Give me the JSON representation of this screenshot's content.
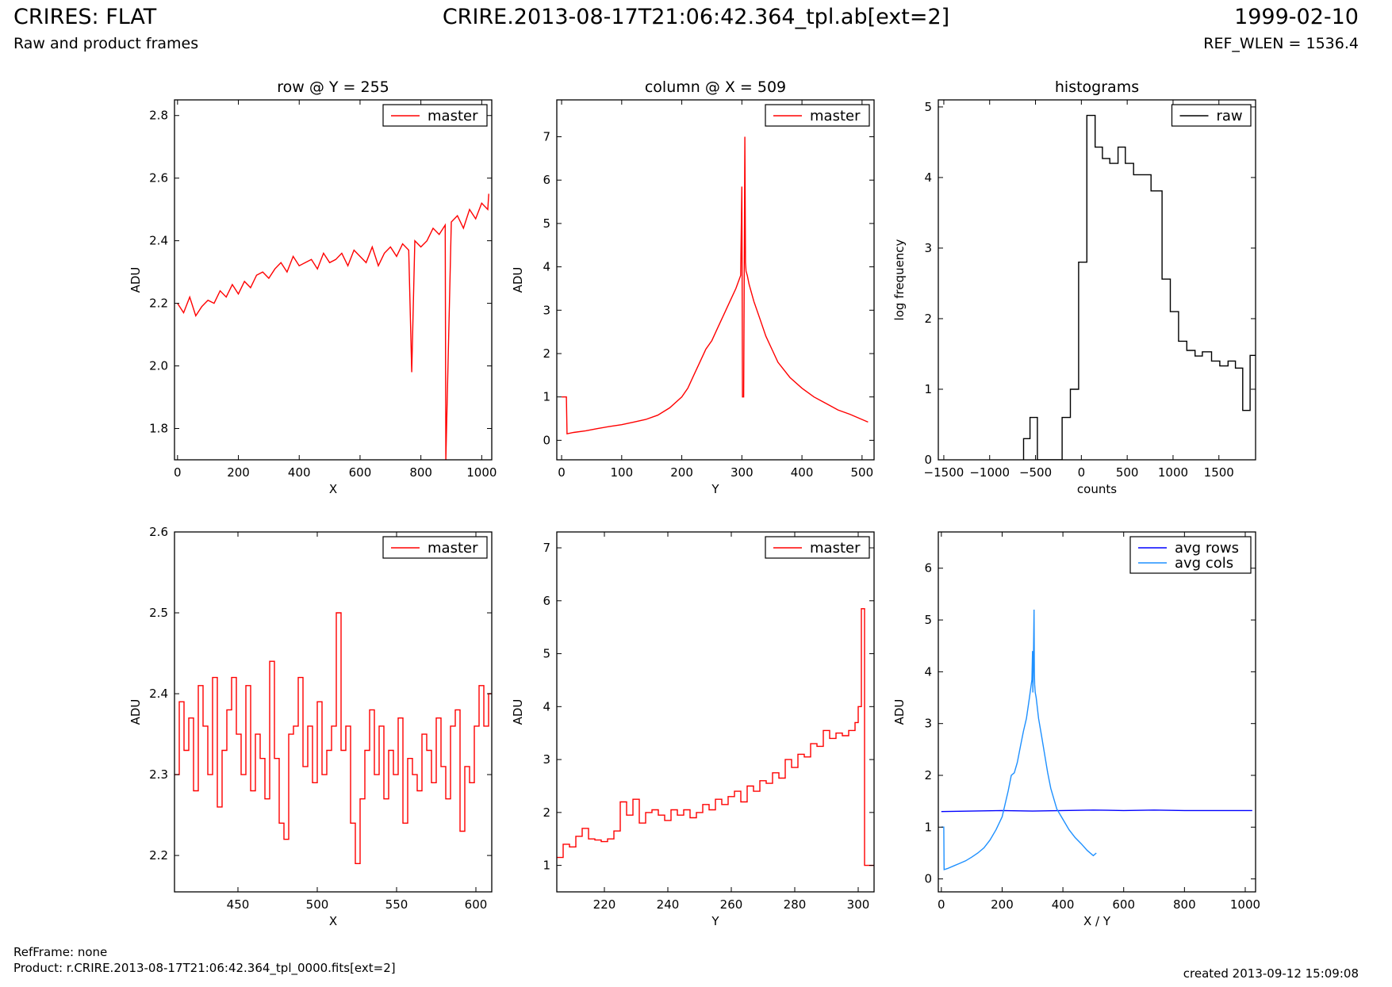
{
  "header": {
    "title": "CRIRES: FLAT",
    "subtitle": "Raw and product frames",
    "center": "CRIRE.2013-08-17T21:06:42.364_tpl.ab[ext=2]",
    "date": "1999-02-10",
    "ref_wlen": "REF_WLEN = 1536.4"
  },
  "footer": {
    "ref_frame": "RefFrame: none",
    "product": "Product: r.CRIRE.2013-08-17T21:06:42.364_tpl_0000.fits[ext=2]",
    "created": "created 2013-09-12 15:09:08"
  },
  "colors": {
    "master": "#ff0000",
    "raw": "#000000",
    "avg_rows": "#0000ff",
    "avg_cols": "#1e90ff"
  },
  "chart_data": [
    {
      "type": "line",
      "title": "row @ Y = 255",
      "xlabel": "X",
      "ylabel": "ADU",
      "xlim": [
        -10,
        1033
      ],
      "ylim": [
        1.7,
        2.85
      ],
      "xticks": [
        0,
        200,
        400,
        600,
        800,
        1000
      ],
      "yticks": [
        1.8,
        2.0,
        2.2,
        2.4,
        2.6,
        2.8
      ],
      "legend": "top-right",
      "series": [
        {
          "name": "master",
          "color": "#ff0000",
          "x": [
            0,
            20,
            40,
            60,
            80,
            100,
            120,
            140,
            160,
            180,
            200,
            220,
            240,
            260,
            280,
            300,
            320,
            340,
            360,
            380,
            400,
            420,
            440,
            460,
            480,
            500,
            520,
            540,
            560,
            580,
            600,
            620,
            640,
            660,
            680,
            700,
            720,
            740,
            760,
            770,
            780,
            800,
            820,
            840,
            860,
            880,
            882,
            900,
            920,
            940,
            960,
            980,
            1000,
            1020,
            1023
          ],
          "y": [
            2.2,
            2.17,
            2.22,
            2.16,
            2.19,
            2.21,
            2.2,
            2.24,
            2.22,
            2.26,
            2.23,
            2.27,
            2.25,
            2.29,
            2.3,
            2.28,
            2.31,
            2.33,
            2.3,
            2.35,
            2.32,
            2.33,
            2.34,
            2.31,
            2.36,
            2.33,
            2.34,
            2.36,
            2.32,
            2.37,
            2.35,
            2.33,
            2.38,
            2.32,
            2.36,
            2.38,
            2.35,
            2.39,
            2.37,
            1.98,
            2.4,
            2.38,
            2.4,
            2.44,
            2.42,
            2.45,
            1.7,
            2.46,
            2.48,
            2.44,
            2.5,
            2.47,
            2.52,
            2.5,
            2.55
          ]
        }
      ]
    },
    {
      "type": "line",
      "title": "column @ X = 509",
      "xlabel": "Y",
      "ylabel": "ADU",
      "xlim": [
        -8,
        520
      ],
      "ylim": [
        -0.45,
        7.85
      ],
      "xticks": [
        0,
        100,
        200,
        300,
        400,
        500
      ],
      "yticks": [
        0,
        1,
        2,
        3,
        4,
        5,
        6,
        7
      ],
      "legend": "top-right",
      "series": [
        {
          "name": "master",
          "color": "#ff0000",
          "x": [
            0,
            8,
            9,
            20,
            40,
            60,
            80,
            100,
            120,
            140,
            160,
            180,
            200,
            210,
            220,
            230,
            240,
            250,
            260,
            270,
            280,
            290,
            298,
            300,
            301,
            303,
            305,
            306,
            307,
            309,
            312,
            320,
            330,
            340,
            350,
            360,
            380,
            400,
            420,
            440,
            460,
            480,
            500,
            510
          ],
          "y": [
            1.0,
            1.0,
            0.15,
            0.18,
            0.22,
            0.27,
            0.32,
            0.36,
            0.42,
            0.48,
            0.58,
            0.75,
            1.0,
            1.2,
            1.5,
            1.8,
            2.1,
            2.3,
            2.6,
            2.9,
            3.2,
            3.5,
            3.8,
            5.85,
            1.0,
            1.0,
            7.0,
            4.1,
            3.9,
            3.8,
            3.6,
            3.2,
            2.8,
            2.4,
            2.1,
            1.8,
            1.45,
            1.2,
            1.0,
            0.85,
            0.7,
            0.6,
            0.48,
            0.42
          ]
        }
      ]
    },
    {
      "type": "line",
      "title": "histograms",
      "xlabel": "counts",
      "ylabel": "log frequency",
      "xlim": [
        -1560,
        1900
      ],
      "ylim": [
        0,
        5.1
      ],
      "xticks": [
        -1500,
        -1000,
        -500,
        0,
        500,
        1000,
        1500
      ],
      "yticks": [
        0,
        1,
        2,
        3,
        4,
        5
      ],
      "legend": "top-right",
      "series": [
        {
          "name": "raw",
          "color": "#000000",
          "step": true,
          "x": [
            -630,
            -630,
            -560,
            -480,
            -480,
            -300,
            -210,
            -120,
            -30,
            60,
            150,
            230,
            310,
            400,
            480,
            570,
            680,
            760,
            880,
            970,
            1060,
            1150,
            1240,
            1320,
            1420,
            1510,
            1600,
            1680,
            1760,
            1840,
            1900
          ],
          "y": [
            0,
            0.3,
            0.6,
            0,
            0,
            0,
            0.6,
            1.0,
            2.8,
            4.88,
            4.43,
            4.27,
            4.2,
            4.43,
            4.2,
            4.04,
            4.04,
            3.81,
            2.56,
            2.1,
            1.68,
            1.55,
            1.47,
            1.53,
            1.4,
            1.33,
            1.4,
            1.3,
            0.7,
            1.48,
            1.48
          ]
        }
      ]
    },
    {
      "type": "line",
      "title": "",
      "xlabel": "X",
      "ylabel": "ADU",
      "xlim": [
        410,
        610
      ],
      "ylim": [
        2.155,
        2.6
      ],
      "xticks": [
        450,
        500,
        550,
        600
      ],
      "yticks": [
        2.2,
        2.3,
        2.4,
        2.5,
        2.6
      ],
      "legend": "top-right",
      "series": [
        {
          "name": "master",
          "color": "#ff0000",
          "step": true,
          "x": [
            410,
            413,
            416,
            419,
            422,
            425,
            428,
            431,
            434,
            437,
            440,
            443,
            446,
            449,
            452,
            455,
            458,
            461,
            464,
            467,
            470,
            473,
            476,
            479,
            482,
            485,
            488,
            491,
            494,
            497,
            500,
            503,
            506,
            509,
            512,
            515,
            518,
            521,
            524,
            527,
            530,
            533,
            536,
            539,
            542,
            545,
            548,
            551,
            554,
            557,
            560,
            563,
            566,
            569,
            572,
            575,
            578,
            581,
            584,
            587,
            590,
            593,
            596,
            599,
            602,
            605,
            608,
            610
          ],
          "y": [
            2.3,
            2.39,
            2.33,
            2.37,
            2.28,
            2.41,
            2.36,
            2.3,
            2.42,
            2.26,
            2.33,
            2.38,
            2.42,
            2.35,
            2.3,
            2.41,
            2.28,
            2.35,
            2.32,
            2.27,
            2.44,
            2.32,
            2.24,
            2.22,
            2.35,
            2.36,
            2.42,
            2.31,
            2.36,
            2.29,
            2.39,
            2.3,
            2.33,
            2.36,
            2.5,
            2.33,
            2.36,
            2.24,
            2.19,
            2.27,
            2.33,
            2.38,
            2.3,
            2.36,
            2.27,
            2.33,
            2.3,
            2.37,
            2.24,
            2.32,
            2.3,
            2.28,
            2.35,
            2.33,
            2.29,
            2.37,
            2.31,
            2.27,
            2.36,
            2.38,
            2.23,
            2.31,
            2.29,
            2.36,
            2.41,
            2.36,
            2.4,
            2.4
          ]
        }
      ]
    },
    {
      "type": "line",
      "title": "",
      "xlabel": "Y",
      "ylabel": "ADU",
      "xlim": [
        205,
        305
      ],
      "ylim": [
        0.5,
        7.3
      ],
      "xticks": [
        220,
        240,
        260,
        280,
        300
      ],
      "yticks": [
        1,
        2,
        3,
        4,
        5,
        6,
        7
      ],
      "legend": "top-right",
      "series": [
        {
          "name": "master",
          "color": "#ff0000",
          "step": true,
          "x": [
            205,
            207,
            209,
            211,
            213,
            215,
            217,
            219,
            221,
            223,
            225,
            227,
            229,
            231,
            233,
            235,
            237,
            239,
            241,
            243,
            245,
            247,
            249,
            251,
            253,
            255,
            257,
            259,
            261,
            263,
            265,
            267,
            269,
            271,
            273,
            275,
            277,
            279,
            281,
            283,
            285,
            287,
            289,
            291,
            293,
            295,
            297,
            299,
            300,
            301,
            302,
            305
          ],
          "y": [
            1.15,
            1.4,
            1.35,
            1.55,
            1.7,
            1.5,
            1.48,
            1.45,
            1.5,
            1.65,
            2.2,
            1.95,
            2.25,
            1.8,
            2.0,
            2.05,
            1.95,
            1.85,
            2.05,
            1.95,
            2.05,
            1.9,
            2.0,
            2.15,
            2.05,
            2.25,
            2.15,
            2.3,
            2.4,
            2.2,
            2.5,
            2.4,
            2.6,
            2.55,
            2.75,
            2.65,
            3.0,
            2.85,
            3.1,
            3.05,
            3.3,
            3.25,
            3.55,
            3.4,
            3.5,
            3.45,
            3.55,
            3.7,
            4.0,
            5.85,
            1.0,
            1.0
          ]
        }
      ]
    },
    {
      "type": "line",
      "title": "",
      "xlabel": "X / Y",
      "ylabel": "ADU",
      "xlim": [
        -10,
        1034
      ],
      "ylim": [
        -0.25,
        6.7
      ],
      "xticks": [
        0,
        200,
        400,
        600,
        800,
        1000
      ],
      "yticks": [
        0,
        1,
        2,
        3,
        4,
        5,
        6
      ],
      "legend": "top-right",
      "series": [
        {
          "name": "avg rows",
          "color": "#0000ff",
          "x": [
            0,
            100,
            200,
            300,
            400,
            500,
            600,
            700,
            800,
            900,
            1023
          ],
          "y": [
            1.3,
            1.31,
            1.32,
            1.31,
            1.32,
            1.33,
            1.32,
            1.33,
            1.32,
            1.32,
            1.32
          ]
        },
        {
          "name": "avg cols",
          "color": "#1e90ff",
          "x": [
            0,
            8,
            9,
            20,
            40,
            60,
            80,
            100,
            120,
            140,
            160,
            180,
            200,
            210,
            220,
            230,
            240,
            250,
            260,
            270,
            280,
            290,
            298,
            300,
            301,
            303,
            305,
            306,
            307,
            309,
            312,
            320,
            330,
            340,
            350,
            360,
            380,
            400,
            420,
            440,
            460,
            480,
            500,
            510
          ],
          "y": [
            1.0,
            1.0,
            0.18,
            0.2,
            0.25,
            0.3,
            0.35,
            0.42,
            0.5,
            0.6,
            0.75,
            0.95,
            1.2,
            1.45,
            1.7,
            2.0,
            2.05,
            2.25,
            2.55,
            2.85,
            3.1,
            3.5,
            3.85,
            4.4,
            3.6,
            4.2,
            5.2,
            4.0,
            3.75,
            3.6,
            3.5,
            3.1,
            2.75,
            2.4,
            2.05,
            1.75,
            1.35,
            1.15,
            0.95,
            0.8,
            0.68,
            0.55,
            0.45,
            0.5
          ]
        }
      ]
    }
  ]
}
